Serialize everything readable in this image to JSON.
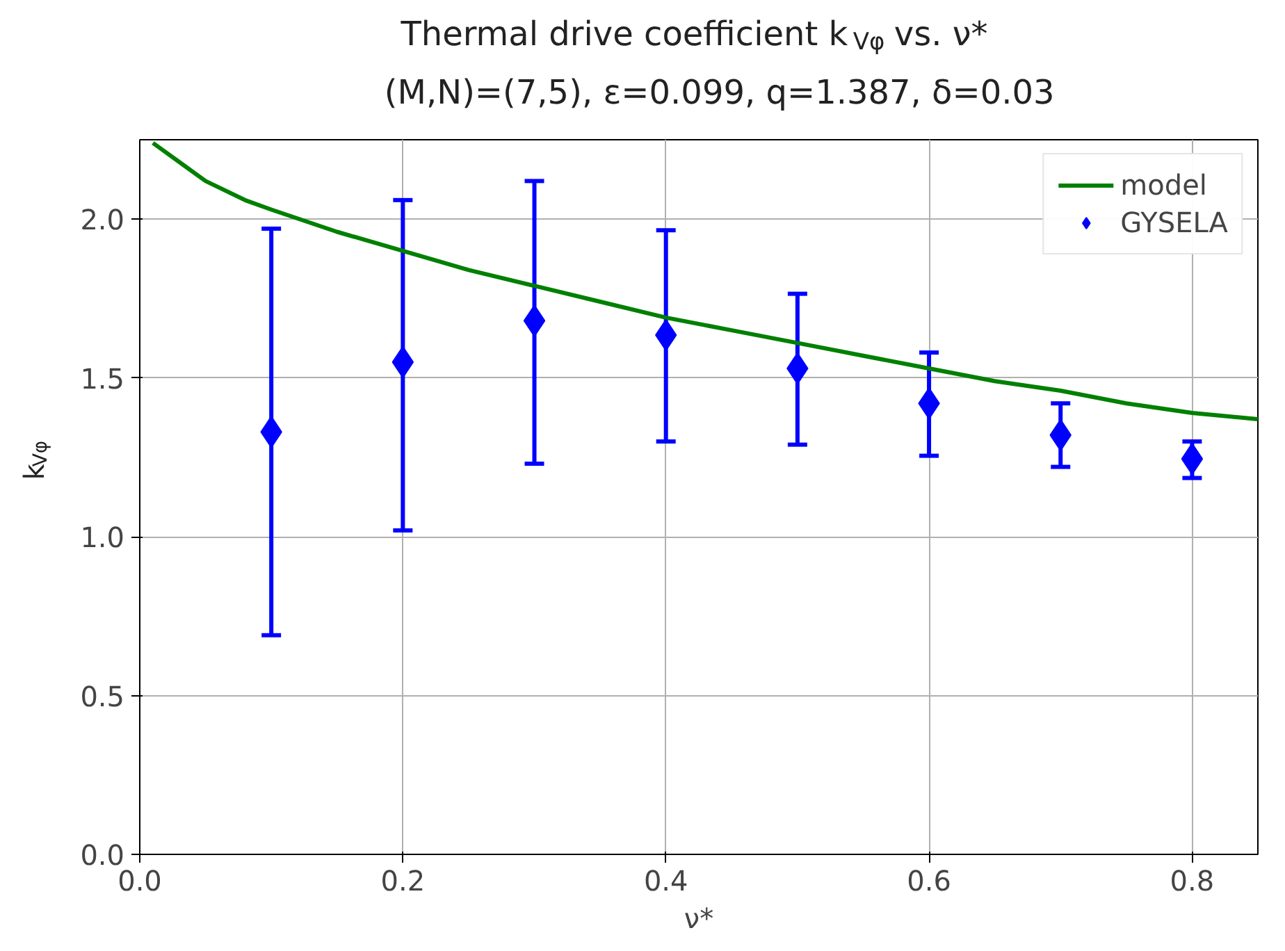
{
  "chart_data": {
    "type": "scatter",
    "title": "Thermal drive coefficient k$_{Vφ}$ vs. ν*",
    "subtitle": "(M,N)=(7,5), ε=0.099, q=1.387, δ=0.03",
    "xlabel": "ν*",
    "ylabel": "k$_{Vφ}$",
    "xlim": [
      0,
      0.85
    ],
    "ylim": [
      0,
      2.25
    ],
    "xticks": [
      {
        "value": 0,
        "label": "0.0"
      },
      0.2,
      0.4,
      0.6,
      0.8
    ],
    "yticks": [
      {
        "value": 0,
        "label": "0.0"
      },
      0.5,
      {
        "value": 1,
        "label": "1.0"
      },
      1.5,
      {
        "value": 2,
        "label": "2.0"
      }
    ],
    "grid": true,
    "legend": "top right",
    "series": [
      {
        "name": "model",
        "type": "line",
        "color": "#008000",
        "marker": "none",
        "x": [
          0.01,
          0.03,
          0.05,
          0.08,
          0.1,
          0.15,
          0.2,
          0.25,
          0.3,
          0.35,
          0.4,
          0.45,
          0.5,
          0.55,
          0.6,
          0.65,
          0.7,
          0.75,
          0.8,
          0.85
        ],
        "values": [
          2.24,
          2.18,
          2.12,
          2.06,
          2.03,
          1.96,
          1.9,
          1.84,
          1.79,
          1.74,
          1.69,
          1.65,
          1.61,
          1.57,
          1.53,
          1.49,
          1.46,
          1.42,
          1.39,
          1.37
        ]
      },
      {
        "name": "GYSELA",
        "type": "scatter",
        "color": "#0000ff",
        "marker": "diamond",
        "x": [
          0.1,
          0.2,
          0.3,
          0.4,
          0.5,
          0.6,
          0.7,
          0.8
        ],
        "values": [
          1.33,
          1.55,
          1.68,
          1.635,
          1.53,
          1.42,
          1.32,
          1.245
        ],
        "errors": [
          [
            0.69,
            1.97
          ],
          [
            1.02,
            2.06
          ],
          [
            1.23,
            2.12
          ],
          [
            1.3,
            1.965
          ],
          [
            1.29,
            1.765
          ],
          [
            1.255,
            1.58
          ],
          [
            1.22,
            1.42
          ],
          [
            1.185,
            1.3
          ]
        ]
      }
    ]
  }
}
